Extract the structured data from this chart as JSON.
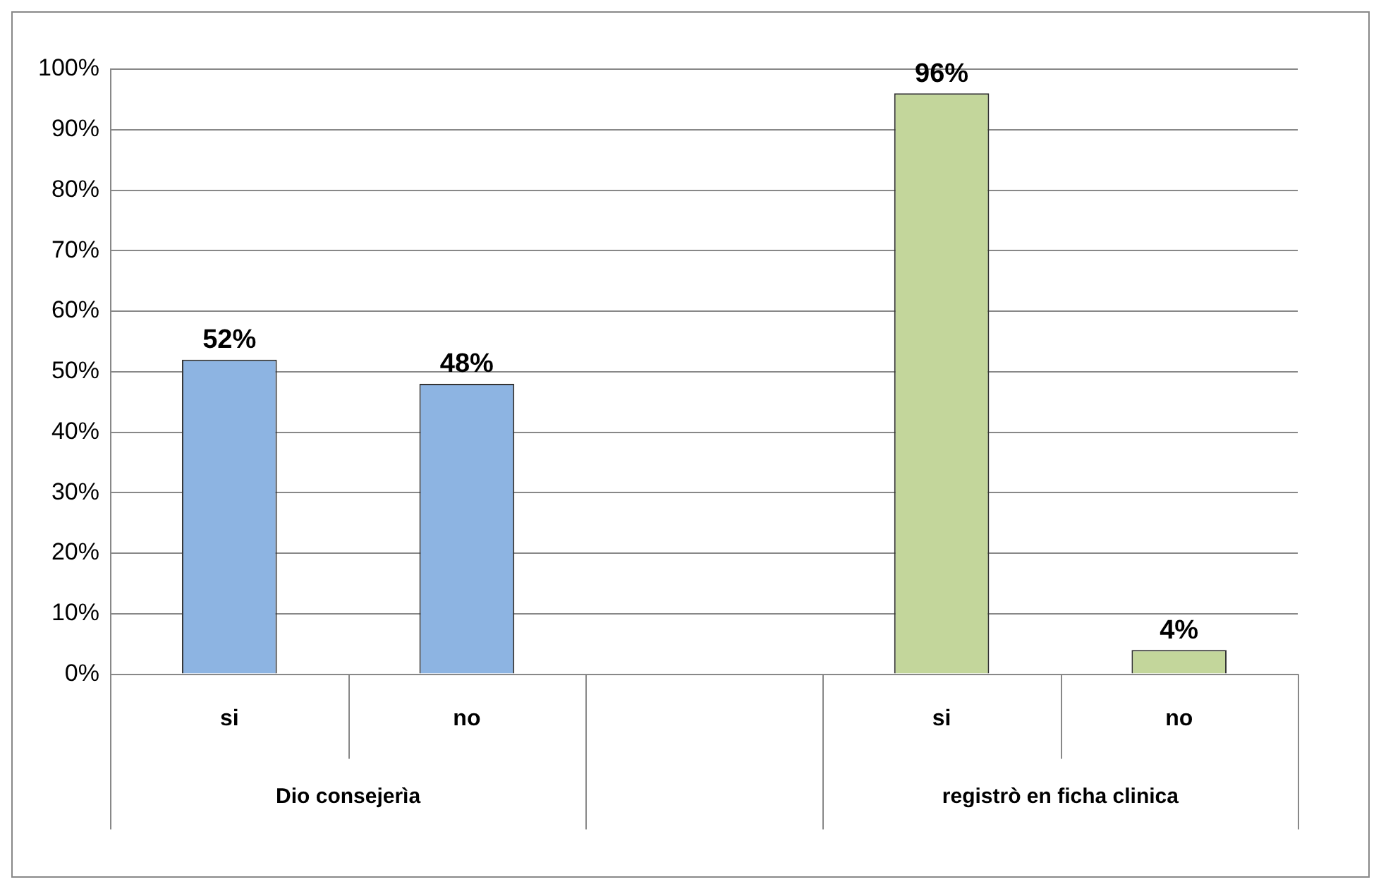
{
  "chart_data": {
    "type": "bar",
    "categories": [
      "si",
      "no",
      null,
      "si",
      "no"
    ],
    "values": [
      52,
      48,
      null,
      96,
      4
    ],
    "colors": [
      "#8db4e2",
      "#8db4e2",
      "#c3d69b",
      "#c3d69b",
      "#c3d69b"
    ],
    "value_labels": [
      "52%",
      "48%",
      null,
      "96%",
      "4%"
    ],
    "ylim": [
      0,
      100
    ],
    "yticks": [
      {
        "value": 0,
        "label": "0%"
      },
      {
        "value": 10,
        "label": "10%"
      },
      {
        "value": 20,
        "label": "20%"
      },
      {
        "value": 30,
        "label": "30%"
      },
      {
        "value": 40,
        "label": "40%"
      },
      {
        "value": 50,
        "label": "50%"
      },
      {
        "value": 60,
        "label": "60%"
      },
      {
        "value": 70,
        "label": "70%"
      },
      {
        "value": 80,
        "label": "80%"
      },
      {
        "value": 90,
        "label": "90%"
      },
      {
        "value": 100,
        "label": "100%"
      }
    ],
    "grid": "y",
    "annotations": [
      "Dio consejerìa",
      "registrò en ficha clinica"
    ]
  }
}
